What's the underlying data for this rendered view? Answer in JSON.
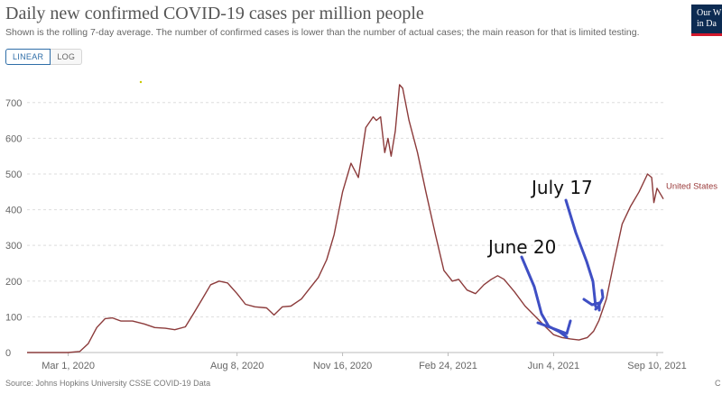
{
  "header": {
    "title": "Daily new confirmed COVID-19 cases per million people",
    "subtitle": "Shown is the rolling 7-day average. The number of confirmed cases is lower than the number of actual cases; the main reason for that is limited testing.",
    "logo_line1": "Our W",
    "logo_line2": "in Da"
  },
  "toggle": {
    "linear_label": "LINEAR",
    "log_label": "LOG",
    "selected": "LINEAR"
  },
  "footer": {
    "source": "Source: Johns Hopkins University CSSE COVID-19 Data",
    "corner": "C"
  },
  "colors": {
    "series": "#8c3b3b",
    "grid": "#dddddd",
    "annotation_pen": "#3f4fc4",
    "accent": "#2f6ea8"
  },
  "annotations": [
    {
      "text": "July 17",
      "x": "2021-07-17",
      "y": 430
    },
    {
      "text": "June 20",
      "x": "2021-06-20",
      "y": 280
    }
  ],
  "chart_data": {
    "type": "line",
    "title": "Daily new confirmed COVID-19 cases per million people",
    "ylim": [
      0,
      760
    ],
    "yticks": [
      0,
      100,
      200,
      300,
      400,
      500,
      600,
      700
    ],
    "x_ticks": [
      {
        "label": "Mar 1, 2020",
        "x": "2020-03-01"
      },
      {
        "label": "Aug 8, 2020",
        "x": "2020-08-08"
      },
      {
        "label": "Nov 16, 2020",
        "x": "2020-11-16"
      },
      {
        "label": "Feb 24, 2021",
        "x": "2021-02-24"
      },
      {
        "label": "Jun 4, 2021",
        "x": "2021-06-04"
      },
      {
        "label": "Sep 10, 2021",
        "x": "2021-09-10"
      }
    ],
    "xlim": [
      "2020-01-22",
      "2021-09-16"
    ],
    "grid": true,
    "series": [
      {
        "name": "United States",
        "points": [
          [
            "2020-01-22",
            0
          ],
          [
            "2020-03-01",
            0
          ],
          [
            "2020-03-12",
            3
          ],
          [
            "2020-03-20",
            25
          ],
          [
            "2020-03-28",
            70
          ],
          [
            "2020-04-05",
            95
          ],
          [
            "2020-04-12",
            97
          ],
          [
            "2020-04-20",
            88
          ],
          [
            "2020-05-01",
            88
          ],
          [
            "2020-05-12",
            80
          ],
          [
            "2020-05-22",
            70
          ],
          [
            "2020-06-01",
            68
          ],
          [
            "2020-06-10",
            64
          ],
          [
            "2020-06-20",
            72
          ],
          [
            "2020-06-28",
            110
          ],
          [
            "2020-07-06",
            150
          ],
          [
            "2020-07-14",
            190
          ],
          [
            "2020-07-22",
            200
          ],
          [
            "2020-07-30",
            195
          ],
          [
            "2020-08-08",
            165
          ],
          [
            "2020-08-16",
            135
          ],
          [
            "2020-08-25",
            128
          ],
          [
            "2020-09-05",
            125
          ],
          [
            "2020-09-12",
            105
          ],
          [
            "2020-09-20",
            128
          ],
          [
            "2020-09-28",
            130
          ],
          [
            "2020-10-08",
            150
          ],
          [
            "2020-10-16",
            180
          ],
          [
            "2020-10-24",
            210
          ],
          [
            "2020-11-01",
            260
          ],
          [
            "2020-11-08",
            330
          ],
          [
            "2020-11-16",
            450
          ],
          [
            "2020-11-24",
            530
          ],
          [
            "2020-12-01",
            490
          ],
          [
            "2020-12-08",
            630
          ],
          [
            "2020-12-15",
            660
          ],
          [
            "2020-12-18",
            650
          ],
          [
            "2020-12-22",
            660
          ],
          [
            "2020-12-26",
            560
          ],
          [
            "2020-12-29",
            600
          ],
          [
            "2021-01-01",
            550
          ],
          [
            "2021-01-05",
            620
          ],
          [
            "2021-01-09",
            750
          ],
          [
            "2021-01-12",
            740
          ],
          [
            "2021-01-18",
            650
          ],
          [
            "2021-01-26",
            560
          ],
          [
            "2021-02-03",
            450
          ],
          [
            "2021-02-12",
            330
          ],
          [
            "2021-02-20",
            230
          ],
          [
            "2021-02-28",
            200
          ],
          [
            "2021-03-06",
            205
          ],
          [
            "2021-03-14",
            175
          ],
          [
            "2021-03-22",
            165
          ],
          [
            "2021-03-30",
            190
          ],
          [
            "2021-04-06",
            205
          ],
          [
            "2021-04-12",
            215
          ],
          [
            "2021-04-18",
            205
          ],
          [
            "2021-04-28",
            170
          ],
          [
            "2021-05-08",
            130
          ],
          [
            "2021-05-18",
            100
          ],
          [
            "2021-05-28",
            70
          ],
          [
            "2021-06-04",
            50
          ],
          [
            "2021-06-12",
            42
          ],
          [
            "2021-06-20",
            38
          ],
          [
            "2021-06-28",
            35
          ],
          [
            "2021-07-06",
            42
          ],
          [
            "2021-07-12",
            60
          ],
          [
            "2021-07-17",
            90
          ],
          [
            "2021-07-24",
            150
          ],
          [
            "2021-07-31",
            250
          ],
          [
            "2021-08-08",
            360
          ],
          [
            "2021-08-16",
            410
          ],
          [
            "2021-08-24",
            450
          ],
          [
            "2021-09-01",
            500
          ],
          [
            "2021-09-05",
            490
          ],
          [
            "2021-09-07",
            420
          ],
          [
            "2021-09-10",
            460
          ],
          [
            "2021-09-14",
            440
          ],
          [
            "2021-09-16",
            430
          ]
        ]
      }
    ]
  }
}
